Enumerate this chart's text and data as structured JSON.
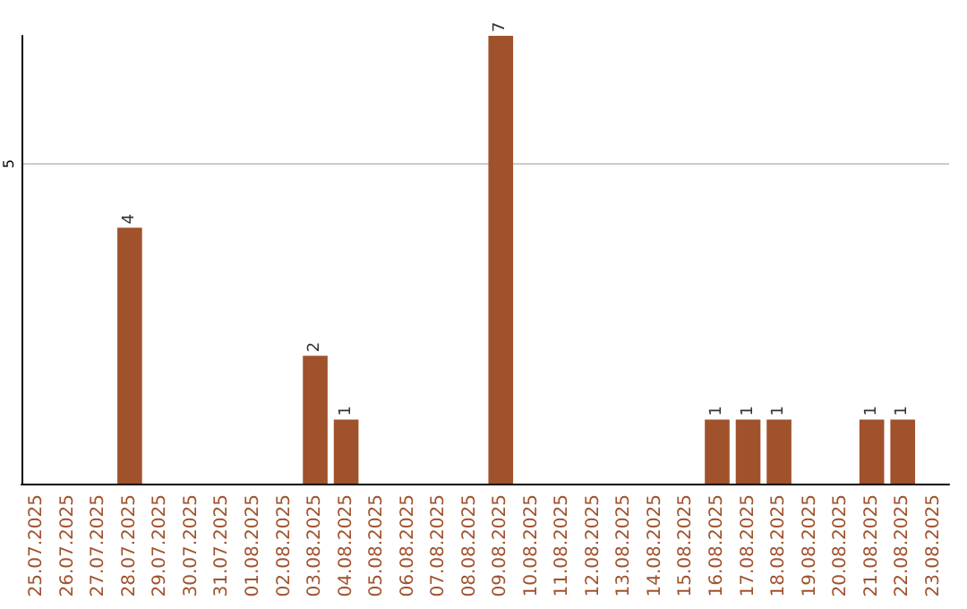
{
  "chart_data": {
    "type": "bar",
    "categories": [
      "25.07.2025",
      "26.07.2025",
      "27.07.2025",
      "28.07.2025",
      "29.07.2025",
      "30.07.2025",
      "31.07.2025",
      "01.08.2025",
      "02.08.2025",
      "03.08.2025",
      "04.08.2025",
      "05.08.2025",
      "06.08.2025",
      "07.08.2025",
      "08.08.2025",
      "09.08.2025",
      "10.08.2025",
      "11.08.2025",
      "12.08.2025",
      "13.08.2025",
      "14.08.2025",
      "15.08.2025",
      "16.08.2025",
      "17.08.2025",
      "18.08.2025",
      "19.08.2025",
      "20.08.2025",
      "21.08.2025",
      "22.08.2025",
      "23.08.2025"
    ],
    "values": [
      0,
      0,
      0,
      4,
      0,
      0,
      0,
      0,
      0,
      2,
      1,
      0,
      0,
      0,
      0,
      7,
      0,
      0,
      0,
      0,
      0,
      0,
      1,
      1,
      1,
      0,
      0,
      1,
      1,
      0
    ],
    "value_labels": [
      null,
      null,
      null,
      "4",
      null,
      null,
      null,
      null,
      null,
      "2",
      "1",
      null,
      null,
      null,
      null,
      "7",
      null,
      null,
      null,
      null,
      null,
      null,
      "1",
      "1",
      "1",
      null,
      null,
      "1",
      "1",
      null
    ],
    "color": "#a0522d",
    "ylim": [
      0,
      7
    ],
    "yticks": [
      5
    ],
    "grid": "y"
  }
}
